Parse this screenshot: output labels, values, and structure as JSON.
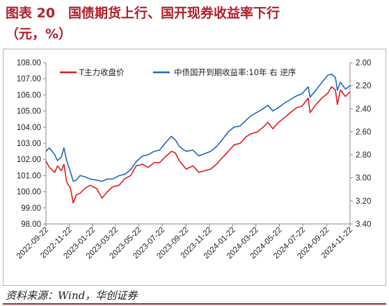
{
  "header": {
    "line1": "图表 20　国债期货上行、国开现券收益率下行",
    "line2": "（元，%）"
  },
  "source": "资料来源：Wind，华创证券",
  "colors": {
    "title": "#b21f2a",
    "series_t": "#e41a1c",
    "series_bond": "#1f66c1"
  },
  "chart_data": {
    "type": "line",
    "title": "",
    "legend_position": "top-left",
    "grid": false,
    "x_ticks": [
      "2022-09-22",
      "2022-11-22",
      "2023-01-22",
      "2023-03-22",
      "2023-05-22",
      "2023-07-22",
      "2023-09-22",
      "2023-11-22",
      "2024-01-22",
      "2024-03-22",
      "2024-05-22",
      "2024-07-22",
      "2024-09-22",
      "2024-11-22"
    ],
    "x_range": [
      "2022-09-22",
      "2024-11-22"
    ],
    "left_axis": {
      "min": 98,
      "max": 108,
      "ticks": [
        "98.00",
        "99.00",
        "100.00",
        "101.00",
        "102.00",
        "103.00",
        "104.00",
        "105.00",
        "106.00",
        "107.00",
        "108.00"
      ]
    },
    "right_axis": {
      "min": 2.0,
      "max": 3.4,
      "inverted": true,
      "ticks": [
        "2.00",
        "2.20",
        "2.40",
        "2.60",
        "2.80",
        "3.00",
        "3.20",
        "3.40"
      ]
    },
    "series": [
      {
        "name": "T主力收盘价",
        "axis": "left",
        "color": "#e41a1c",
        "points": [
          [
            "2022-09-22",
            101.9
          ],
          [
            "2022-10-01",
            101.5
          ],
          [
            "2022-10-15",
            101.2
          ],
          [
            "2022-10-22",
            101.6
          ],
          [
            "2022-11-01",
            101.3
          ],
          [
            "2022-11-08",
            101.7
          ],
          [
            "2022-11-15",
            100.6
          ],
          [
            "2022-11-25",
            100.2
          ],
          [
            "2022-12-02",
            99.3
          ],
          [
            "2022-12-10",
            99.8
          ],
          [
            "2022-12-20",
            99.9
          ],
          [
            "2023-01-01",
            100.2
          ],
          [
            "2023-01-15",
            100.4
          ],
          [
            "2023-02-01",
            100.2
          ],
          [
            "2023-02-15",
            99.6
          ],
          [
            "2023-03-01",
            100.0
          ],
          [
            "2023-03-15",
            100.3
          ],
          [
            "2023-04-01",
            100.4
          ],
          [
            "2023-04-15",
            100.8
          ],
          [
            "2023-05-01",
            101.0
          ],
          [
            "2023-05-15",
            101.6
          ],
          [
            "2023-06-01",
            101.7
          ],
          [
            "2023-06-15",
            101.5
          ],
          [
            "2023-07-01",
            101.8
          ],
          [
            "2023-07-15",
            101.8
          ],
          [
            "2023-08-01",
            102.2
          ],
          [
            "2023-08-15",
            102.5
          ],
          [
            "2023-08-25",
            102.4
          ],
          [
            "2023-09-05",
            101.9
          ],
          [
            "2023-09-22",
            101.4
          ],
          [
            "2023-10-10",
            101.6
          ],
          [
            "2023-10-25",
            101.2
          ],
          [
            "2023-11-10",
            101.3
          ],
          [
            "2023-11-25",
            101.4
          ],
          [
            "2023-12-10",
            101.7
          ],
          [
            "2023-12-25",
            102.1
          ],
          [
            "2024-01-10",
            102.5
          ],
          [
            "2024-01-25",
            102.9
          ],
          [
            "2024-02-10",
            103.0
          ],
          [
            "2024-02-25",
            103.4
          ],
          [
            "2024-03-10",
            103.6
          ],
          [
            "2024-03-25",
            103.7
          ],
          [
            "2024-04-10",
            104.0
          ],
          [
            "2024-04-22",
            104.3
          ],
          [
            "2024-05-05",
            103.9
          ],
          [
            "2024-05-20",
            104.3
          ],
          [
            "2024-06-05",
            104.6
          ],
          [
            "2024-06-20",
            104.9
          ],
          [
            "2024-07-05",
            105.2
          ],
          [
            "2024-07-20",
            105.3
          ],
          [
            "2024-08-05",
            105.8
          ],
          [
            "2024-08-10",
            104.9
          ],
          [
            "2024-08-25",
            105.4
          ],
          [
            "2024-09-10",
            105.8
          ],
          [
            "2024-09-25",
            106.1
          ],
          [
            "2024-10-05",
            106.5
          ],
          [
            "2024-10-15",
            106.3
          ],
          [
            "2024-10-20",
            105.4
          ],
          [
            "2024-10-28",
            106.3
          ],
          [
            "2024-11-10",
            105.9
          ],
          [
            "2024-11-22",
            106.2
          ]
        ]
      },
      {
        "name": "中债国开到期收益率:10年  右  逆序",
        "axis": "right",
        "color": "#1f66c1",
        "points": [
          [
            "2022-09-22",
            2.77
          ],
          [
            "2022-10-01",
            2.74
          ],
          [
            "2022-10-15",
            2.8
          ],
          [
            "2022-10-22",
            2.85
          ],
          [
            "2022-11-01",
            2.82
          ],
          [
            "2022-11-08",
            2.74
          ],
          [
            "2022-11-15",
            2.85
          ],
          [
            "2022-11-25",
            2.95
          ],
          [
            "2022-12-02",
            3.03
          ],
          [
            "2022-12-10",
            3.02
          ],
          [
            "2022-12-20",
            2.98
          ],
          [
            "2023-01-01",
            2.99
          ],
          [
            "2023-01-15",
            3.01
          ],
          [
            "2023-02-01",
            3.02
          ],
          [
            "2023-02-15",
            3.03
          ],
          [
            "2023-03-01",
            3.01
          ],
          [
            "2023-03-15",
            3.01
          ],
          [
            "2023-04-01",
            2.98
          ],
          [
            "2023-04-15",
            2.97
          ],
          [
            "2023-05-01",
            2.93
          ],
          [
            "2023-05-15",
            2.86
          ],
          [
            "2023-06-01",
            2.81
          ],
          [
            "2023-06-15",
            2.8
          ],
          [
            "2023-07-01",
            2.77
          ],
          [
            "2023-07-15",
            2.76
          ],
          [
            "2023-08-01",
            2.69
          ],
          [
            "2023-08-15",
            2.64
          ],
          [
            "2023-08-25",
            2.67
          ],
          [
            "2023-09-05",
            2.73
          ],
          [
            "2023-09-22",
            2.77
          ],
          [
            "2023-10-10",
            2.76
          ],
          [
            "2023-10-25",
            2.81
          ],
          [
            "2023-11-10",
            2.79
          ],
          [
            "2023-11-25",
            2.77
          ],
          [
            "2023-12-10",
            2.73
          ],
          [
            "2023-12-25",
            2.67
          ],
          [
            "2024-01-10",
            2.6
          ],
          [
            "2024-01-25",
            2.56
          ],
          [
            "2024-02-10",
            2.55
          ],
          [
            "2024-02-25",
            2.5
          ],
          [
            "2024-03-10",
            2.46
          ],
          [
            "2024-03-25",
            2.43
          ],
          [
            "2024-04-10",
            2.4
          ],
          [
            "2024-04-22",
            2.37
          ],
          [
            "2024-05-05",
            2.42
          ],
          [
            "2024-05-20",
            2.39
          ],
          [
            "2024-06-05",
            2.35
          ],
          [
            "2024-06-20",
            2.32
          ],
          [
            "2024-07-05",
            2.29
          ],
          [
            "2024-07-20",
            2.27
          ],
          [
            "2024-08-05",
            2.21
          ],
          [
            "2024-08-10",
            2.3
          ],
          [
            "2024-08-25",
            2.24
          ],
          [
            "2024-09-10",
            2.17
          ],
          [
            "2024-09-25",
            2.11
          ],
          [
            "2024-10-05",
            2.1
          ],
          [
            "2024-10-15",
            2.13
          ],
          [
            "2024-10-20",
            2.24
          ],
          [
            "2024-10-28",
            2.17
          ],
          [
            "2024-11-10",
            2.23
          ],
          [
            "2024-11-22",
            2.2
          ]
        ]
      }
    ]
  }
}
